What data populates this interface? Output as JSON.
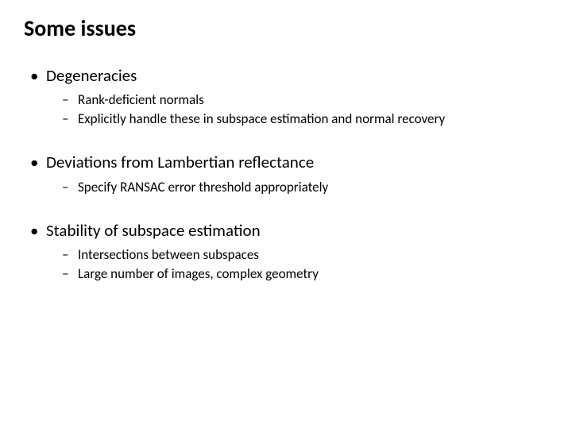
{
  "title": "Some issues",
  "sections": [
    {
      "heading": "Degeneracies",
      "items": [
        "Rank-deficient normals",
        "Explicitly handle these in subspace estimation and normal recovery"
      ]
    },
    {
      "heading": "Deviations from Lambertian reflectance",
      "items": [
        "Specify RANSAC error threshold appropriately"
      ]
    },
    {
      "heading": "Stability of subspace estimation",
      "items": [
        "Intersections between subspaces",
        "Large number of images, complex geometry"
      ]
    }
  ],
  "styling": {
    "background_color": "#ffffff",
    "text_color": "#000000",
    "title_fontsize": 28,
    "title_fontweight": 700,
    "level1_fontsize": 21,
    "level2_fontsize": 17,
    "font_family": "Calibri",
    "bullet_char": "•",
    "dash_char": "–"
  }
}
